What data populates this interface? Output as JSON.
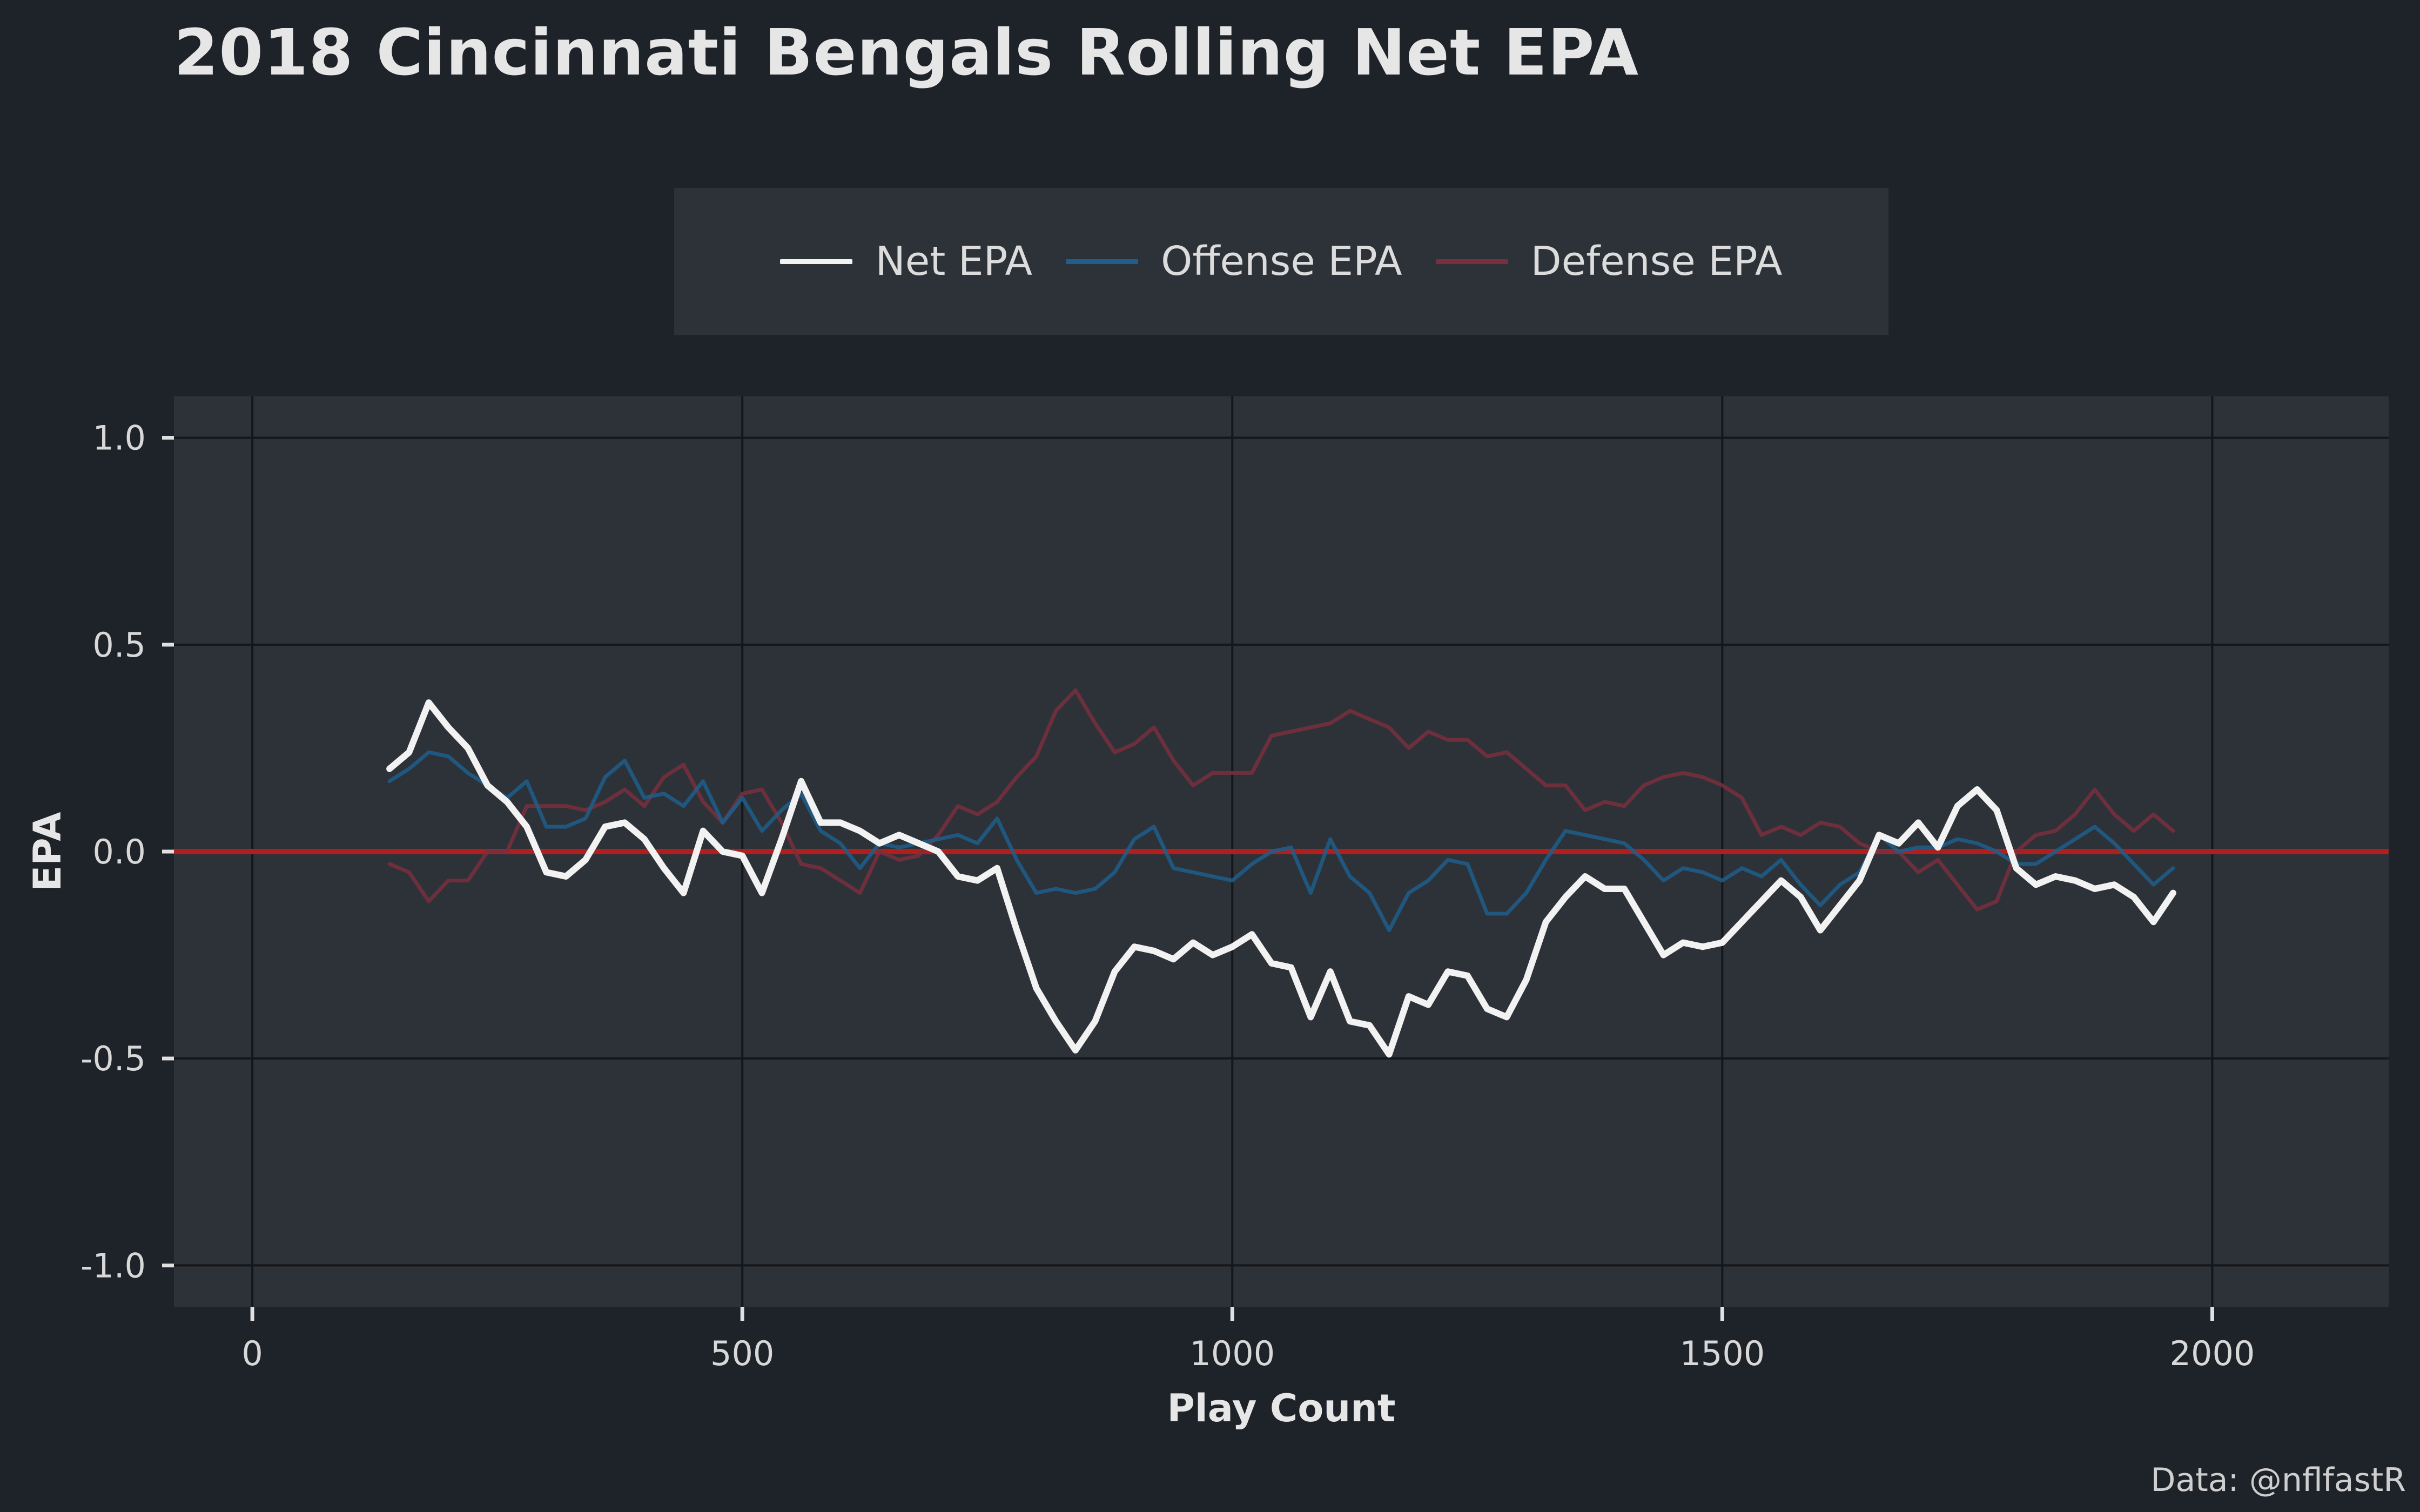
{
  "colors": {
    "background": "#1e2229",
    "panel": "#2d3238",
    "grid": "#141619",
    "text": "#e6e6e6",
    "net": "#f2f2f2",
    "offense": "#1f5e8c",
    "defense": "#7a2f3e",
    "zero_line": "#b01e1e"
  },
  "source": "Data: @nflfastR",
  "chart_data": {
    "type": "line",
    "title": "2018 Cincinnati Bengals Rolling Net EPA",
    "xlabel": "Play Count",
    "ylabel": "EPA",
    "xlim": [
      -80,
      2180
    ],
    "ylim": [
      -1.1,
      1.1
    ],
    "x_ticks": [
      0,
      500,
      1000,
      1500,
      2000
    ],
    "y_ticks": [
      -1.0,
      -0.5,
      0.0,
      0.5,
      1.0
    ],
    "x_tick_labels": [
      "0",
      "500",
      "1000",
      "1500",
      "2000"
    ],
    "y_tick_labels": [
      "-1.0",
      "-0.5",
      "0.0",
      "0.5",
      "1.0"
    ],
    "grid": true,
    "legend_position": "top",
    "reference_line": {
      "y": 0.0,
      "color": "#b01e1e"
    },
    "x": [
      140,
      160,
      180,
      200,
      220,
      240,
      260,
      280,
      300,
      320,
      340,
      360,
      380,
      400,
      420,
      440,
      460,
      480,
      500,
      520,
      540,
      560,
      580,
      600,
      620,
      640,
      660,
      680,
      700,
      720,
      740,
      760,
      780,
      800,
      820,
      840,
      860,
      880,
      900,
      920,
      940,
      960,
      980,
      1000,
      1020,
      1040,
      1060,
      1080,
      1100,
      1120,
      1140,
      1160,
      1180,
      1200,
      1220,
      1240,
      1260,
      1280,
      1300,
      1320,
      1340,
      1360,
      1380,
      1400,
      1420,
      1440,
      1460,
      1480,
      1500,
      1520,
      1540,
      1560,
      1580,
      1600,
      1620,
      1640,
      1660,
      1680,
      1700,
      1720,
      1740,
      1760,
      1780,
      1800,
      1820,
      1840,
      1860,
      1880,
      1900,
      1920,
      1940,
      1960
    ],
    "series": [
      {
        "name": "Net EPA",
        "color": "#f2f2f2",
        "values": [
          0.2,
          0.24,
          0.36,
          0.3,
          0.25,
          0.16,
          0.12,
          0.06,
          -0.05,
          -0.06,
          -0.02,
          0.06,
          0.07,
          0.03,
          -0.04,
          -0.1,
          0.05,
          0.0,
          -0.01,
          -0.1,
          0.03,
          0.17,
          0.07,
          0.07,
          0.05,
          0.02,
          0.04,
          0.02,
          0.0,
          -0.06,
          -0.07,
          -0.04,
          -0.19,
          -0.33,
          -0.41,
          -0.48,
          -0.41,
          -0.29,
          -0.23,
          -0.24,
          -0.26,
          -0.22,
          -0.25,
          -0.23,
          -0.2,
          -0.27,
          -0.28,
          -0.4,
          -0.29,
          -0.41,
          -0.42,
          -0.49,
          -0.35,
          -0.37,
          -0.29,
          -0.3,
          -0.38,
          -0.4,
          -0.31,
          -0.17,
          -0.11,
          -0.06,
          -0.09,
          -0.09,
          -0.17,
          -0.25,
          -0.22,
          -0.23,
          -0.22,
          -0.17,
          -0.12,
          -0.07,
          -0.11,
          -0.19,
          -0.13,
          -0.07,
          0.04,
          0.02,
          0.07,
          0.01,
          0.11,
          0.15,
          0.1,
          -0.04,
          -0.08,
          -0.06,
          -0.07,
          -0.09,
          -0.08,
          -0.11,
          -0.17,
          -0.1
        ]
      },
      {
        "name": "Offense EPA",
        "color": "#1f5e8c",
        "values": [
          0.17,
          0.2,
          0.24,
          0.23,
          0.19,
          0.16,
          0.13,
          0.17,
          0.06,
          0.06,
          0.08,
          0.18,
          0.22,
          0.13,
          0.14,
          0.11,
          0.17,
          0.07,
          0.13,
          0.05,
          0.1,
          0.14,
          0.05,
          0.02,
          -0.04,
          0.02,
          0.01,
          0.02,
          0.03,
          0.04,
          0.02,
          0.08,
          -0.02,
          -0.1,
          -0.09,
          -0.1,
          -0.09,
          -0.05,
          0.03,
          0.06,
          -0.04,
          -0.05,
          -0.06,
          -0.07,
          -0.03,
          0.0,
          0.01,
          -0.1,
          0.03,
          -0.06,
          -0.1,
          -0.19,
          -0.1,
          -0.07,
          -0.02,
          -0.03,
          -0.15,
          -0.15,
          -0.1,
          -0.02,
          0.05,
          0.04,
          0.03,
          0.02,
          -0.02,
          -0.07,
          -0.04,
          -0.05,
          -0.07,
          -0.04,
          -0.06,
          -0.02,
          -0.08,
          -0.13,
          -0.08,
          -0.05,
          0.04,
          0.0,
          0.01,
          0.01,
          0.03,
          0.02,
          0.0,
          -0.03,
          -0.03,
          0.0,
          0.03,
          0.06,
          0.02,
          -0.03,
          -0.08,
          -0.04
        ]
      },
      {
        "name": "Defense EPA",
        "color": "#7a2f3e",
        "values": [
          -0.03,
          -0.05,
          -0.12,
          -0.07,
          -0.07,
          0.0,
          0.0,
          0.11,
          0.11,
          0.11,
          0.1,
          0.12,
          0.15,
          0.11,
          0.18,
          0.21,
          0.12,
          0.07,
          0.14,
          0.15,
          0.07,
          -0.03,
          -0.04,
          -0.07,
          -0.1,
          0.0,
          -0.02,
          -0.01,
          0.04,
          0.11,
          0.09,
          0.12,
          0.18,
          0.23,
          0.34,
          0.39,
          0.31,
          0.24,
          0.26,
          0.3,
          0.22,
          0.16,
          0.19,
          0.19,
          0.19,
          0.28,
          0.29,
          0.3,
          0.31,
          0.34,
          0.32,
          0.3,
          0.25,
          0.29,
          0.27,
          0.27,
          0.23,
          0.24,
          0.2,
          0.16,
          0.16,
          0.1,
          0.12,
          0.11,
          0.16,
          0.18,
          0.19,
          0.18,
          0.16,
          0.13,
          0.04,
          0.06,
          0.04,
          0.07,
          0.06,
          0.02,
          0.0,
          0.0,
          -0.05,
          -0.02,
          -0.08,
          -0.14,
          -0.12,
          0.0,
          0.04,
          0.05,
          0.09,
          0.15,
          0.09,
          0.05,
          0.09,
          0.05
        ]
      }
    ]
  }
}
